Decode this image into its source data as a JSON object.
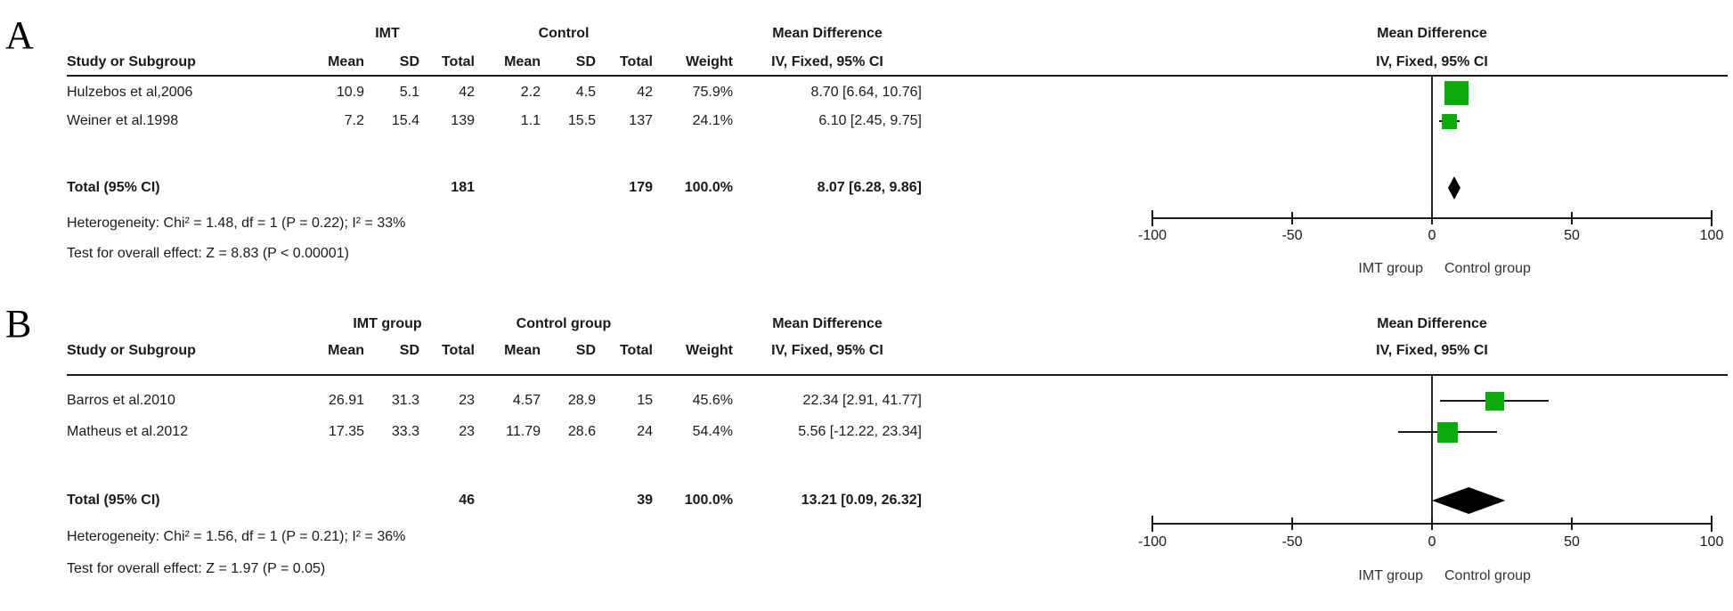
{
  "colors": {
    "square_green": "#0bab0b",
    "diamond_black": "#000000",
    "axis_black": "#1a1a1a"
  },
  "chart_data": [
    {
      "type": "scatter",
      "plot_style": "forest",
      "panel_label": "A",
      "group1_header": "IMT",
      "group2_header": "Control",
      "effect_header": "Mean Difference",
      "effect_ci_header": "IV, Fixed, 95% CI",
      "columns": {
        "study": "Study or Subgroup",
        "mean": "Mean",
        "sd": "SD",
        "total": "Total",
        "weight": "Weight"
      },
      "studies": [
        {
          "name": "Hulzebos et al,2006",
          "mean1": "10.9",
          "sd1": "5.1",
          "total1": "42",
          "mean2": "2.2",
          "sd2": "4.5",
          "total2": "42",
          "weight": "75.9%",
          "weight_pct": 75.9,
          "ci_text": "8.70 [6.64, 10.76]",
          "est": 8.7,
          "lo": 6.64,
          "hi": 10.76
        },
        {
          "name": "Weiner et al.1998",
          "mean1": "7.2",
          "sd1": "15.4",
          "total1": "139",
          "mean2": "1.1",
          "sd2": "15.5",
          "total2": "137",
          "weight": "24.1%",
          "weight_pct": 24.1,
          "ci_text": "6.10 [2.45, 9.75]",
          "est": 6.1,
          "lo": 2.45,
          "hi": 9.75
        }
      ],
      "total": {
        "label": "Total (95% CI)",
        "total1": "181",
        "total2": "179",
        "weight": "100.0%",
        "ci_text": "8.07 [6.28, 9.86]",
        "est": 8.07,
        "lo": 6.28,
        "hi": 9.86
      },
      "heterogeneity": "Heterogeneity: Chi² = 1.48, df = 1 (P = 0.22); I² = 33%",
      "overall_effect": "Test for overall effect: Z = 8.83 (P < 0.00001)",
      "axis": {
        "min": -100,
        "max": 100,
        "ticks": [
          {
            "value": -100,
            "label": "-100"
          },
          {
            "value": -50,
            "label": "-50"
          },
          {
            "value": 0,
            "label": "0"
          },
          {
            "value": 50,
            "label": "50"
          },
          {
            "value": 100,
            "label": "100"
          }
        ],
        "left_label": "IMT group",
        "right_label": "Control group"
      }
    },
    {
      "type": "scatter",
      "plot_style": "forest",
      "panel_label": "B",
      "group1_header": "IMT group",
      "group2_header": "Control group",
      "effect_header": "Mean Difference",
      "effect_ci_header": "IV, Fixed, 95% CI",
      "columns": {
        "study": "Study or Subgroup",
        "mean": "Mean",
        "sd": "SD",
        "total": "Total",
        "weight": "Weight"
      },
      "studies": [
        {
          "name": "Barros et al.2010",
          "mean1": "26.91",
          "sd1": "31.3",
          "total1": "23",
          "mean2": "4.57",
          "sd2": "28.9",
          "total2": "15",
          "weight": "45.6%",
          "weight_pct": 45.6,
          "ci_text": "22.34 [2.91, 41.77]",
          "est": 22.34,
          "lo": 2.91,
          "hi": 41.77
        },
        {
          "name": "Matheus et al.2012",
          "mean1": "17.35",
          "sd1": "33.3",
          "total1": "23",
          "mean2": "11.79",
          "sd2": "28.6",
          "total2": "24",
          "weight": "54.4%",
          "weight_pct": 54.4,
          "ci_text": "5.56 [-12.22, 23.34]",
          "est": 5.56,
          "lo": -12.22,
          "hi": 23.34
        }
      ],
      "total": {
        "label": "Total (95% CI)",
        "total1": "46",
        "total2": "39",
        "weight": "100.0%",
        "ci_text": "13.21 [0.09, 26.32]",
        "est": 13.21,
        "lo": 0.09,
        "hi": 26.32
      },
      "heterogeneity": "Heterogeneity: Chi² = 1.56, df = 1 (P = 0.21); I² = 36%",
      "overall_effect": "Test for overall effect: Z = 1.97 (P = 0.05)",
      "axis": {
        "min": -100,
        "max": 100,
        "ticks": [
          {
            "value": -100,
            "label": "-100"
          },
          {
            "value": -50,
            "label": "-50"
          },
          {
            "value": 0,
            "label": "0"
          },
          {
            "value": 50,
            "label": "50"
          },
          {
            "value": 100,
            "label": "100"
          }
        ],
        "left_label": "IMT group",
        "right_label": "Control group"
      }
    }
  ]
}
